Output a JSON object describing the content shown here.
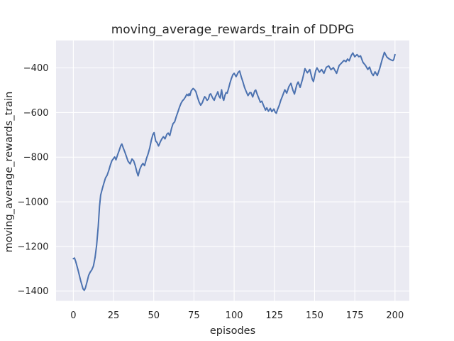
{
  "figure": {
    "title": "moving_average_rewards_train of DDPG",
    "xlabel": "episodes",
    "ylabel": "moving_average_rewards_train"
  },
  "colors": {
    "line": "#4c72b0",
    "plot_background": "#eaeaf2",
    "grid": "#ffffff",
    "text": "#262626",
    "figure_background": "#ffffff"
  },
  "chart_data": {
    "type": "line",
    "title": "moving_average_rewards_train of DDPG",
    "xlabel": "episodes",
    "ylabel": "moving_average_rewards_train",
    "xlim": [
      -10.75,
      208.9
    ],
    "ylim": [
      -1444,
      -277
    ],
    "xticks": [
      0,
      25,
      50,
      75,
      100,
      125,
      150,
      175,
      200
    ],
    "yticks": [
      -400,
      -600,
      -800,
      -1000,
      -1200,
      -1400
    ],
    "grid": true,
    "legend": false,
    "series": [
      {
        "name": "moving_average_rewards_train",
        "color": "#4c72b0",
        "points": [
          [
            0,
            -1255
          ],
          [
            0.7,
            -1252
          ],
          [
            1.5,
            -1268
          ],
          [
            3,
            -1308
          ],
          [
            4.5,
            -1352
          ],
          [
            6,
            -1390
          ],
          [
            6.8,
            -1397
          ],
          [
            7.5,
            -1386
          ],
          [
            8.5,
            -1360
          ],
          [
            9.5,
            -1330
          ],
          [
            10.5,
            -1315
          ],
          [
            11.5,
            -1305
          ],
          [
            12.5,
            -1288
          ],
          [
            13.5,
            -1250
          ],
          [
            14.5,
            -1195
          ],
          [
            15.5,
            -1110
          ],
          [
            16.3,
            -1020
          ],
          [
            17,
            -970
          ],
          [
            18,
            -942
          ],
          [
            19,
            -916
          ],
          [
            20,
            -893
          ],
          [
            21,
            -881
          ],
          [
            22,
            -860
          ],
          [
            23,
            -836
          ],
          [
            24,
            -815
          ],
          [
            25,
            -806
          ],
          [
            25.7,
            -799
          ],
          [
            26.5,
            -812
          ],
          [
            27.5,
            -790
          ],
          [
            28.5,
            -770
          ],
          [
            29.5,
            -748
          ],
          [
            30.2,
            -741
          ],
          [
            31,
            -758
          ],
          [
            32,
            -776
          ],
          [
            33,
            -797
          ],
          [
            34,
            -818
          ],
          [
            35.3,
            -830
          ],
          [
            36.5,
            -808
          ],
          [
            37.5,
            -816
          ],
          [
            38.5,
            -838
          ],
          [
            39.5,
            -866
          ],
          [
            40.3,
            -884
          ],
          [
            41.3,
            -855
          ],
          [
            42.3,
            -838
          ],
          [
            43.3,
            -828
          ],
          [
            44.3,
            -838
          ],
          [
            45.5,
            -806
          ],
          [
            46.5,
            -785
          ],
          [
            47.5,
            -758
          ],
          [
            48.5,
            -724
          ],
          [
            49.5,
            -698
          ],
          [
            50.2,
            -690
          ],
          [
            51.2,
            -728
          ],
          [
            52,
            -734
          ],
          [
            53,
            -750
          ],
          [
            54.2,
            -729
          ],
          [
            55.2,
            -716
          ],
          [
            56,
            -708
          ],
          [
            57,
            -718
          ],
          [
            58.2,
            -697
          ],
          [
            59,
            -692
          ],
          [
            60,
            -703
          ],
          [
            61,
            -672
          ],
          [
            62,
            -650
          ],
          [
            63,
            -642
          ],
          [
            64,
            -618
          ],
          [
            65,
            -598
          ],
          [
            66,
            -576
          ],
          [
            67,
            -558
          ],
          [
            67.8,
            -548
          ],
          [
            68.8,
            -540
          ],
          [
            69.8,
            -529
          ],
          [
            70.6,
            -518
          ],
          [
            71.4,
            -524
          ],
          [
            71.9,
            -516
          ],
          [
            72.5,
            -523
          ],
          [
            73.3,
            -502
          ],
          [
            74.5,
            -492
          ],
          [
            75.3,
            -497
          ],
          [
            76.2,
            -506
          ],
          [
            77.2,
            -531
          ],
          [
            78.2,
            -553
          ],
          [
            79.2,
            -567
          ],
          [
            80.2,
            -556
          ],
          [
            81,
            -540
          ],
          [
            81.7,
            -529
          ],
          [
            82.4,
            -535
          ],
          [
            83.2,
            -545
          ],
          [
            84,
            -539
          ],
          [
            84.8,
            -519
          ],
          [
            85.4,
            -516
          ],
          [
            86.2,
            -528
          ],
          [
            87,
            -539
          ],
          [
            87.6,
            -545
          ],
          [
            88.4,
            -528
          ],
          [
            89.2,
            -518
          ],
          [
            89.8,
            -507
          ],
          [
            90.6,
            -527
          ],
          [
            91.3,
            -535
          ],
          [
            92.2,
            -498
          ],
          [
            93,
            -536
          ],
          [
            93.5,
            -545
          ],
          [
            94.3,
            -522
          ],
          [
            95,
            -510
          ],
          [
            95.7,
            -513
          ],
          [
            96.5,
            -492
          ],
          [
            97.3,
            -470
          ],
          [
            98.2,
            -449
          ],
          [
            99.2,
            -430
          ],
          [
            100,
            -424
          ],
          [
            101.2,
            -439
          ],
          [
            102.5,
            -420
          ],
          [
            103.4,
            -414
          ],
          [
            104.4,
            -440
          ],
          [
            105.4,
            -461
          ],
          [
            106.5,
            -488
          ],
          [
            107.5,
            -506
          ],
          [
            108.6,
            -524
          ],
          [
            109.8,
            -510
          ],
          [
            110.5,
            -511
          ],
          [
            111.5,
            -530
          ],
          [
            112.8,
            -503
          ],
          [
            113.4,
            -499
          ],
          [
            114.4,
            -519
          ],
          [
            115.4,
            -537
          ],
          [
            116.3,
            -554
          ],
          [
            117.2,
            -549
          ],
          [
            118.3,
            -569
          ],
          [
            119.5,
            -589
          ],
          [
            120.3,
            -579
          ],
          [
            121.3,
            -594
          ],
          [
            122.5,
            -581
          ],
          [
            123.4,
            -596
          ],
          [
            124.7,
            -584
          ],
          [
            125.5,
            -598
          ],
          [
            126.2,
            -603
          ],
          [
            127,
            -586
          ],
          [
            128,
            -568
          ],
          [
            129,
            -545
          ],
          [
            130,
            -527
          ],
          [
            131.5,
            -498
          ],
          [
            132.7,
            -513
          ],
          [
            134,
            -484
          ],
          [
            135.3,
            -469
          ],
          [
            136.5,
            -500
          ],
          [
            137.5,
            -517
          ],
          [
            138.9,
            -476
          ],
          [
            139.8,
            -463
          ],
          [
            141,
            -487
          ],
          [
            142.5,
            -450
          ],
          [
            144,
            -403
          ],
          [
            145.5,
            -422
          ],
          [
            147,
            -407
          ],
          [
            148.5,
            -450
          ],
          [
            149.3,
            -461
          ],
          [
            150.7,
            -413
          ],
          [
            151.5,
            -400
          ],
          [
            153,
            -419
          ],
          [
            154.4,
            -407
          ],
          [
            155.8,
            -424
          ],
          [
            157.3,
            -397
          ],
          [
            158.8,
            -391
          ],
          [
            160.2,
            -408
          ],
          [
            161.7,
            -399
          ],
          [
            162.5,
            -409
          ],
          [
            163.7,
            -424
          ],
          [
            165.3,
            -389
          ],
          [
            166.8,
            -378
          ],
          [
            168.3,
            -366
          ],
          [
            169.5,
            -372
          ],
          [
            170.5,
            -360
          ],
          [
            171.5,
            -368
          ],
          [
            172.8,
            -344
          ],
          [
            173.8,
            -333
          ],
          [
            175,
            -350
          ],
          [
            176.4,
            -340
          ],
          [
            177.5,
            -350
          ],
          [
            178.6,
            -346
          ],
          [
            180.1,
            -375
          ],
          [
            181.6,
            -388
          ],
          [
            183.1,
            -407
          ],
          [
            184.2,
            -396
          ],
          [
            185.5,
            -423
          ],
          [
            186.5,
            -434
          ],
          [
            187.6,
            -417
          ],
          [
            189,
            -434
          ],
          [
            190.5,
            -402
          ],
          [
            191.9,
            -365
          ],
          [
            193.4,
            -330
          ],
          [
            194.9,
            -351
          ],
          [
            196.3,
            -359
          ],
          [
            197.8,
            -365
          ],
          [
            198.7,
            -367
          ],
          [
            199.3,
            -361
          ],
          [
            200,
            -340
          ]
        ]
      }
    ]
  }
}
